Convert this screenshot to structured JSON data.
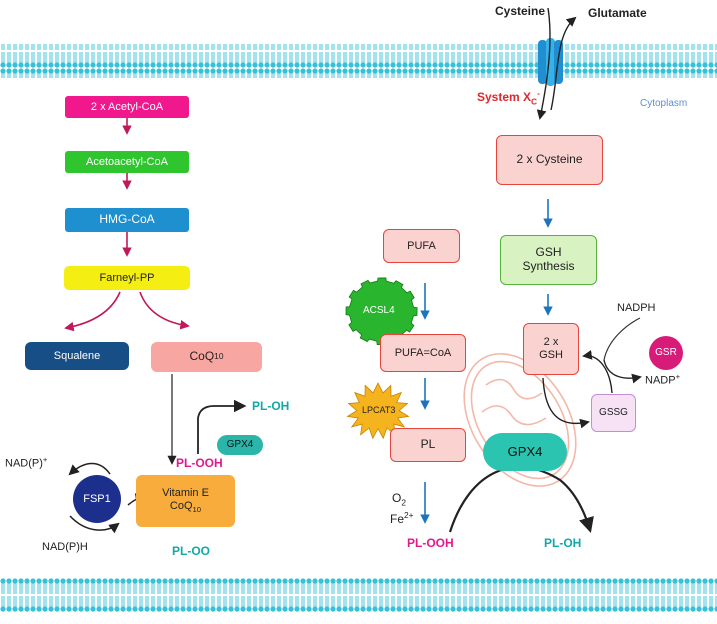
{
  "colors": {
    "membrane": "#35c1d8",
    "pink": "#f0188c",
    "green": "#2ec52e",
    "blue": "#1e90cf",
    "yellow": "#f5ee12",
    "navy": "#184e86",
    "salmon": "#f7a6a2",
    "orange": "#f7ac3c",
    "teal_text": "#11a8a6",
    "red_text": "#e0272c",
    "magenta_text": "#e01a8c"
  },
  "transport": {
    "cysteine": "Cysteine",
    "glutamate": "Glutamate",
    "system_xc": "System X",
    "system_xc_sub": "C",
    "system_xc_sup": "-",
    "cytoplasm": "Cytoplasm"
  },
  "mevalonate": {
    "acetyl_coa": "2 x Acetyl-CoA",
    "acetoacetyl_coa": "Acetoacetyl-CoA",
    "hmg_coa": "HMG-CoA",
    "farnesyl_pp": "Farneyl-PP",
    "squalene": "Squalene",
    "coq10": "CoQ",
    "coq10_sub": "10"
  },
  "fsp1_axis": {
    "nadp_plus": "NAD(P)",
    "nadp_plus_sup": "+",
    "fsp1": "FSP1",
    "nadph": "NAD(P)H",
    "vitamin_e": "Vitamin E",
    "coq10": "CoQ",
    "coq10_sub": "10",
    "pl_ooh": "PL-OOH",
    "gpx4": "GPX4",
    "pl_oh": "PL-OH",
    "pl_oo": "PL-OO"
  },
  "lipid_pathway": {
    "pufa": "PUFA",
    "acsl4": "ACSL4",
    "pufa_coa": "PUFA=CoA",
    "lpcat3": "LPCAT3",
    "pl": "PL",
    "o2": "O",
    "o2_sub": "2",
    "fe": "Fe",
    "fe_sup": "2+",
    "pl_ooh": "PL-OOH",
    "pl_oh": "PL-OH"
  },
  "gsh_pathway": {
    "cysteine2": "2 x Cysteine",
    "gsh_synthesis_line1": "GSH",
    "gsh_synthesis_line2": "Synthesis",
    "gsh_line1": "2 x",
    "gsh_line2": "GSH",
    "nadph": "NADPH",
    "gsr": "GSR",
    "nadp": "NADP",
    "nadp_sup": "+",
    "gssg": "GSSG",
    "gpx4": "GPX4"
  }
}
